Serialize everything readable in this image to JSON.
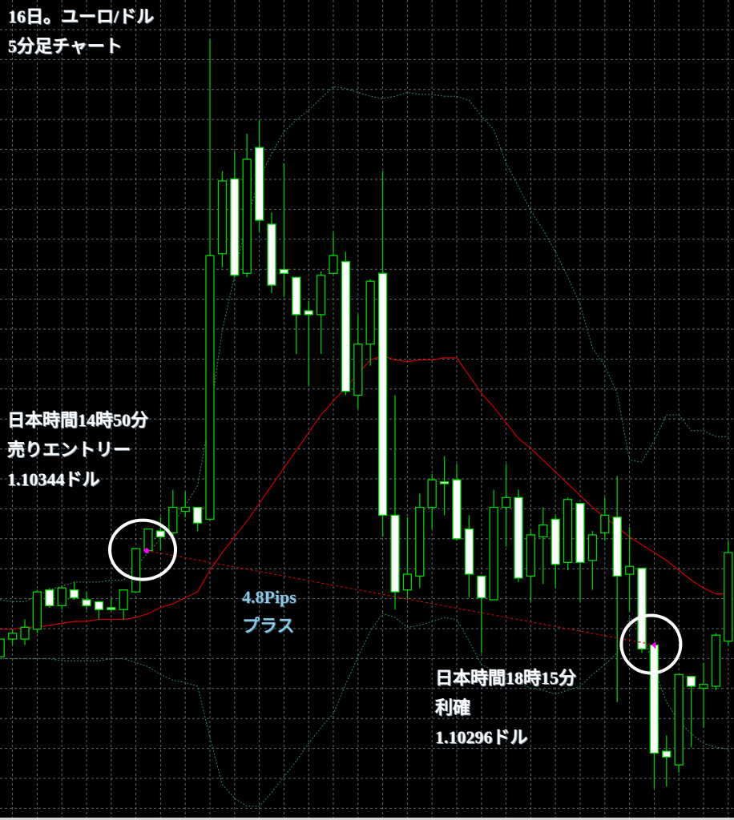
{
  "title": {
    "line1": "16日。ユーロ/ドル",
    "line2": "5分足チャート"
  },
  "entry_note": {
    "time": "日本時間14時50分",
    "action": "売りエントリー",
    "price": "1.10344ドル"
  },
  "exit_note": {
    "time": "日本時間18時15分",
    "action": "利確",
    "price": "1.10296ドル"
  },
  "result_note": {
    "pips": "4.8Pips",
    "label": "プラス"
  },
  "colors": {
    "background": "#000000",
    "grid": "#5f6876",
    "bull_body": "#000000",
    "bear_body": "#ffffff",
    "candle_outline": "#00d400",
    "wick": "#00c800",
    "bb_middle": "#cc0000",
    "bb_bands": "#2e8b57",
    "trade_line": "#cc0000",
    "marker": "#ff00ff",
    "highlight_circle": "#ffffff",
    "pips_text": "#8ec8e4"
  },
  "chart_data": {
    "type": "candlestick",
    "timeframe": "5分足",
    "symbol": "ユーロ/ドル",
    "ylim": [
      1.10207,
      1.10624
    ],
    "grid": true,
    "ohlc": [
      [
        1.1029,
        1.10299,
        1.1029,
        1.10299
      ],
      [
        1.10299,
        1.10304,
        1.10296,
        1.10302
      ],
      [
        1.10299,
        1.10309,
        1.10296,
        1.10305
      ],
      [
        1.10304,
        1.10324,
        1.10302,
        1.10323
      ],
      [
        1.10324,
        1.10325,
        1.10315,
        1.10316
      ],
      [
        1.10316,
        1.10326,
        1.10314,
        1.10325
      ],
      [
        1.10324,
        1.10328,
        1.10319,
        1.1032
      ],
      [
        1.10319,
        1.10323,
        1.10314,
        1.10316
      ],
      [
        1.10318,
        1.10318,
        1.10309,
        1.10314
      ],
      [
        1.10315,
        1.1032,
        1.10313,
        1.10314
      ],
      [
        1.10314,
        1.10324,
        1.10309,
        1.10324
      ],
      [
        1.10323,
        1.10345,
        1.10323,
        1.10345
      ],
      [
        1.10344,
        1.10355,
        1.10344,
        1.10355
      ],
      [
        1.10354,
        1.10361,
        1.10344,
        1.10351
      ],
      [
        1.10353,
        1.10375,
        1.10351,
        1.10366
      ],
      [
        1.10364,
        1.10374,
        1.10361,
        1.10366
      ],
      [
        1.10366,
        1.10366,
        1.10354,
        1.10358
      ],
      [
        1.1036,
        1.10604,
        1.10359,
        1.10494
      ],
      [
        1.10495,
        1.10537,
        1.10488,
        1.10532
      ],
      [
        1.10533,
        1.10547,
        1.10483,
        1.10484
      ],
      [
        1.10485,
        1.10556,
        1.10483,
        1.10543
      ],
      [
        1.10549,
        1.10563,
        1.10506,
        1.10512
      ],
      [
        1.1051,
        1.10516,
        1.10475,
        1.10479
      ],
      [
        1.10487,
        1.10541,
        1.10473,
        1.10485
      ],
      [
        1.10483,
        1.10483,
        1.10444,
        1.10464
      ],
      [
        1.10466,
        1.10471,
        1.10428,
        1.10464
      ],
      [
        1.10464,
        1.10486,
        1.10444,
        1.10484
      ],
      [
        1.10485,
        1.10506,
        1.10485,
        1.10494
      ],
      [
        1.10491,
        1.10496,
        1.10423,
        1.10425
      ],
      [
        1.10423,
        1.10464,
        1.10416,
        1.10449
      ],
      [
        1.10449,
        1.10482,
        1.10438,
        1.10481
      ],
      [
        1.10485,
        1.10537,
        1.10351,
        1.10362
      ],
      [
        1.10362,
        1.10423,
        1.10314,
        1.10323
      ],
      [
        1.10324,
        1.10361,
        1.10319,
        1.10332
      ],
      [
        1.10331,
        1.10373,
        1.10325,
        1.10366
      ],
      [
        1.10366,
        1.10383,
        1.10355,
        1.1038
      ],
      [
        1.10379,
        1.10392,
        1.10362,
        1.10378
      ],
      [
        1.1038,
        1.10388,
        1.10349,
        1.1035
      ],
      [
        1.10355,
        1.10362,
        1.1032,
        1.10332
      ],
      [
        1.10331,
        1.10331,
        1.10292,
        1.1032
      ],
      [
        1.10319,
        1.10375,
        1.10319,
        1.10366
      ],
      [
        1.10366,
        1.10388,
        1.10346,
        1.10371
      ],
      [
        1.10371,
        1.10375,
        1.10328,
        1.1033
      ],
      [
        1.10331,
        1.10355,
        1.10318,
        1.10352
      ],
      [
        1.10351,
        1.10366,
        1.10327,
        1.10357
      ],
      [
        1.1036,
        1.10362,
        1.10325,
        1.10337
      ],
      [
        1.10338,
        1.10371,
        1.10334,
        1.1037
      ],
      [
        1.10368,
        1.10368,
        1.10318,
        1.10338
      ],
      [
        1.10339,
        1.10354,
        1.10324,
        1.10352
      ],
      [
        1.10353,
        1.10371,
        1.10349,
        1.10362
      ],
      [
        1.10361,
        1.10382,
        1.10267,
        1.10331
      ],
      [
        1.10332,
        1.10356,
        1.10313,
        1.10336
      ],
      [
        1.10335,
        1.10335,
        1.10292,
        1.10294
      ],
      [
        1.10296,
        1.10297,
        1.10223,
        1.10241
      ],
      [
        1.10242,
        1.1025,
        1.10224,
        1.10239
      ],
      [
        1.10235,
        1.10281,
        1.10231,
        1.10281
      ],
      [
        1.1028,
        1.1028,
        1.10244,
        1.10275
      ],
      [
        1.10274,
        1.10287,
        1.10254,
        1.10276
      ],
      [
        1.10275,
        1.10302,
        1.10273,
        1.10301
      ],
      [
        1.10298,
        1.10349,
        1.10296,
        1.10343
      ]
    ],
    "bollinger": {
      "upper": [
        1.10319,
        1.10318,
        1.10318,
        1.10321,
        1.10324,
        1.10326,
        1.10328,
        1.10328,
        1.10328,
        1.10329,
        1.10329,
        1.10336,
        1.10343,
        1.1035,
        1.10357,
        1.10367,
        1.10377,
        1.10412,
        1.10456,
        1.10484,
        1.10512,
        1.10533,
        1.10546,
        1.10557,
        1.10563,
        1.10568,
        1.10574,
        1.1058,
        1.10579,
        1.10577,
        1.10575,
        1.10574,
        1.10575,
        1.10577,
        1.10576,
        1.10576,
        1.10575,
        1.10575,
        1.10573,
        1.10565,
        1.10558,
        1.10541,
        1.10529,
        1.10517,
        1.10507,
        1.10496,
        1.10483,
        1.10469,
        1.10447,
        1.10438,
        1.10424,
        1.1039,
        1.10389,
        1.104,
        1.10413,
        1.10413,
        1.10405,
        1.10405,
        1.10402,
        1.10402
      ],
      "middle": [
        1.10304,
        1.10304,
        1.10305,
        1.10305,
        1.10306,
        1.10307,
        1.10308,
        1.10308,
        1.10309,
        1.10309,
        1.10309,
        1.1031,
        1.10312,
        1.10315,
        1.10317,
        1.1032,
        1.10323,
        1.10334,
        1.10343,
        1.10351,
        1.10359,
        1.10368,
        1.10377,
        1.10386,
        1.10395,
        1.10404,
        1.10413,
        1.1042,
        1.10427,
        1.10434,
        1.10441,
        1.10443,
        1.10441,
        1.1044,
        1.10441,
        1.10441,
        1.10442,
        1.10442,
        1.10433,
        1.10424,
        1.10417,
        1.10409,
        1.10401,
        1.10396,
        1.1039,
        1.10384,
        1.10378,
        1.10372,
        1.10366,
        1.10361,
        1.10356,
        1.10351,
        1.10347,
        1.10343,
        1.10339,
        1.10334,
        1.10329,
        1.10325,
        1.10322,
        1.10322
      ],
      "lower": [
        1.10289,
        1.10289,
        1.10289,
        1.10289,
        1.10289,
        1.10288,
        1.10288,
        1.10288,
        1.10288,
        1.10289,
        1.10289,
        1.10287,
        1.10285,
        1.10281,
        1.10278,
        1.10277,
        1.10275,
        1.10249,
        1.10225,
        1.10218,
        1.10214,
        1.10214,
        1.10221,
        1.10229,
        1.10237,
        1.10246,
        1.10254,
        1.10261,
        1.10276,
        1.1029,
        1.10303,
        1.10312,
        1.1031,
        1.10305,
        1.10306,
        1.10308,
        1.1031,
        1.10309,
        1.10298,
        1.10286,
        1.10283,
        1.1028,
        1.10277,
        1.10274,
        1.10273,
        1.10271,
        1.10273,
        1.10275,
        1.10281,
        1.10286,
        1.10292,
        1.1031,
        1.10304,
        1.10284,
        1.10267,
        1.10257,
        1.10251,
        1.10246,
        1.10244,
        1.10243
      ]
    },
    "trade": {
      "entry": {
        "candle_index": 12,
        "price": 1.10344,
        "side": "sell"
      },
      "exit": {
        "candle_index": 53,
        "price": 1.10296
      },
      "result_pips": 4.8
    }
  }
}
